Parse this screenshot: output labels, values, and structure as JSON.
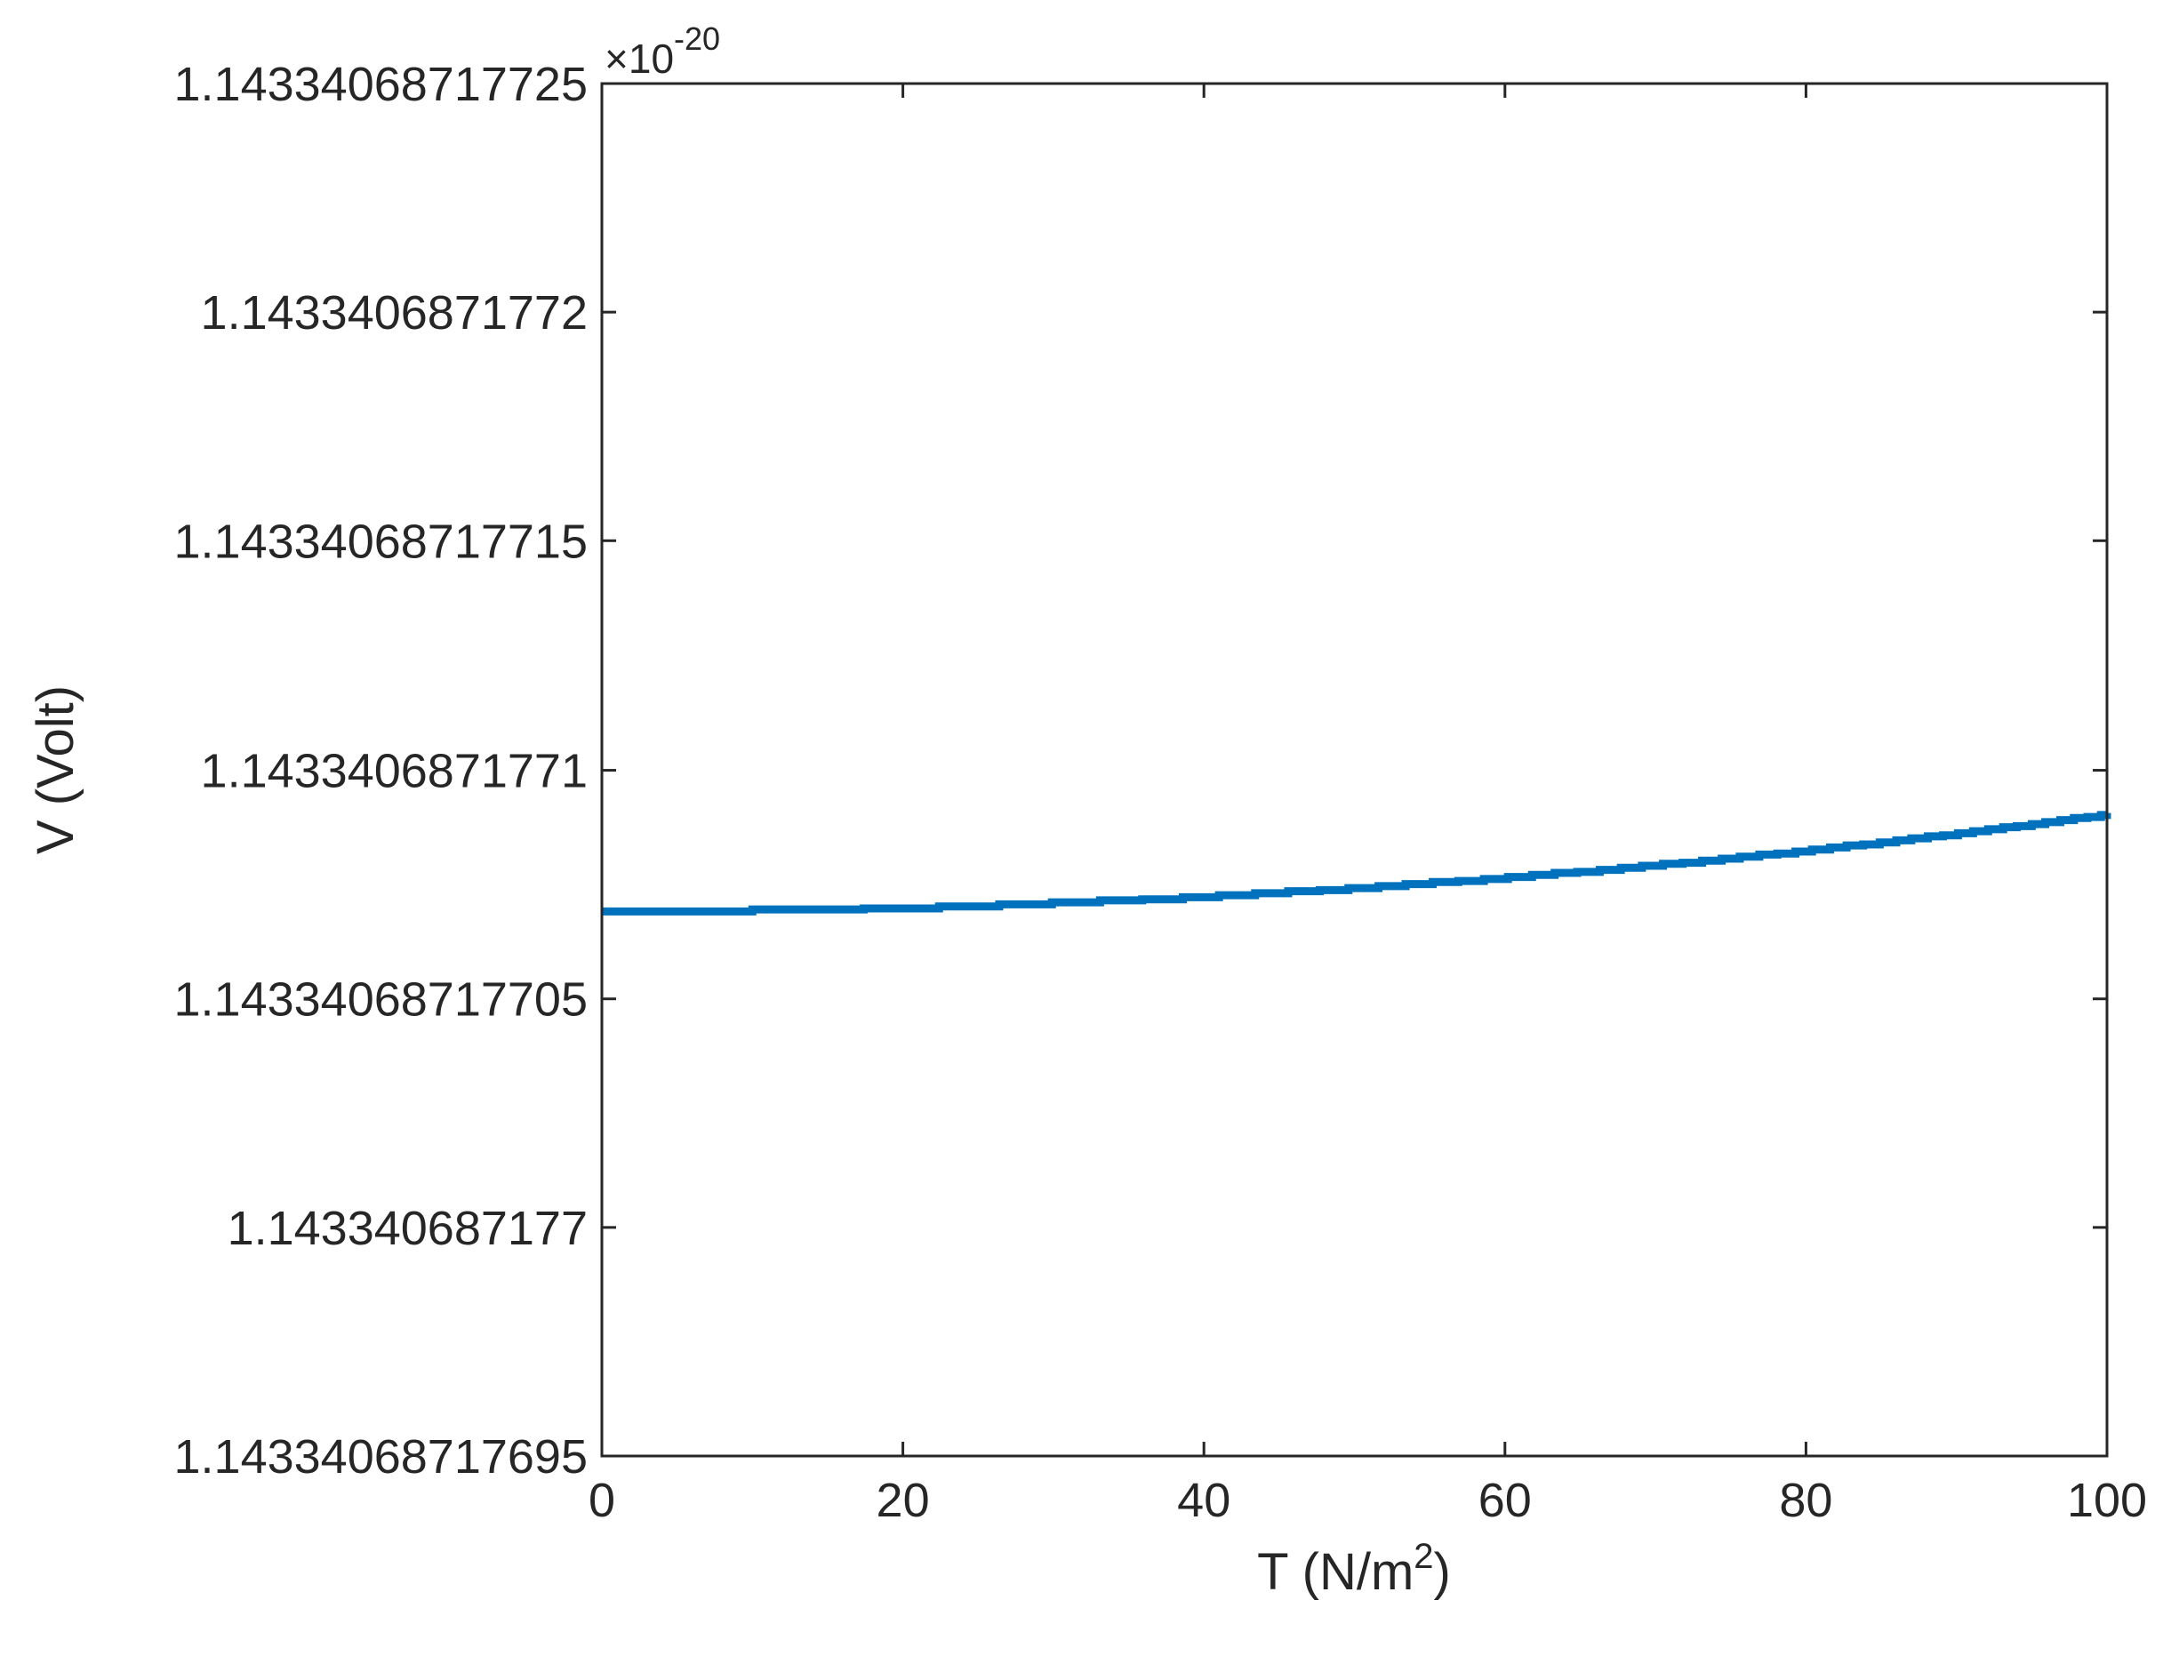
{
  "chart_data": {
    "type": "line",
    "xlabel": "T (N/m",
    "xlabel_superscript": "2",
    "xlabel_suffix": ")",
    "ylabel": "V (Volt)",
    "y_exponent_prefix": "×10",
    "y_exponent_power": "-20",
    "xlim": [
      0,
      100
    ],
    "ylim": [
      1.14334068717695,
      1.14334068717725
    ],
    "x_ticks": [
      0,
      20,
      40,
      60,
      80,
      100
    ],
    "x_tick_labels": [
      "0",
      "20",
      "40",
      "60",
      "80",
      "100"
    ],
    "y_ticks": [
      1.14334068717695,
      1.143340687177,
      1.14334068717705,
      1.1433406871771,
      1.14334068717715,
      1.1433406871772,
      1.14334068717725
    ],
    "y_tick_labels": [
      "1.14334068717695",
      "1.143340687177",
      "1.14334068717705",
      "1.1433406871771",
      "1.14334068717715",
      "1.1433406871772",
      "1.14334068717725"
    ],
    "grid": false,
    "series": [
      {
        "color": "#0072BD",
        "step": true,
        "x": [
          0,
          10,
          17.4,
          22.4,
          26.4,
          29.9,
          33.1,
          35.9,
          38.6,
          41.0,
          43.4,
          45.6,
          47.7,
          49.6,
          51.6,
          53.4,
          55.2,
          56.9,
          58.6,
          60.2,
          61.8,
          63.3,
          64.8,
          66.3,
          67.7,
          69.1,
          70.5,
          71.8,
          73.1,
          74.4,
          75.6,
          76.9,
          78.1,
          79.3,
          80.4,
          81.6,
          82.7,
          83.8,
          84.9,
          86.0,
          87.0,
          88.1,
          89.1,
          90.1,
          91.1,
          92.1,
          93.1,
          94.0,
          95.0,
          95.9,
          96.9,
          97.8,
          98.7,
          99.6,
          100
        ],
        "y": [
          1.143340687177069,
          1.1433406871770695,
          1.1433406871770697,
          1.1433406871770702,
          1.1433406871770706,
          1.143340687177071,
          1.1433406871770715,
          1.1433406871770717,
          1.1433406871770722,
          1.1433406871770726,
          1.143340687177073,
          1.1433406871770735,
          1.1433406871770737,
          1.1433406871770742,
          1.1433406871770746,
          1.143340687177075,
          1.1433406871770755,
          1.1433406871770757,
          1.1433406871770762,
          1.1433406871770766,
          1.143340687177077,
          1.1433406871770775,
          1.1433406871770777,
          1.1433406871770782,
          1.1433406871770786,
          1.143340687177079,
          1.1433406871770795,
          1.1433406871770797,
          1.1433406871770802,
          1.1433406871770806,
          1.143340687177081,
          1.1433406871770815,
          1.1433406871770817,
          1.1433406871770821,
          1.1433406871770826,
          1.143340687177083,
          1.1433406871770835,
          1.1433406871770837,
          1.1433406871770841,
          1.1433406871770846,
          1.143340687177085,
          1.1433406871770855,
          1.1433406871770857,
          1.1433406871770861,
          1.1433406871770866,
          1.143340687177087,
          1.1433406871770875,
          1.1433406871770877,
          1.1433406871770881,
          1.1433406871770886,
          1.143340687177089,
          1.1433406871770895,
          1.1433406871770897,
          1.1433406871770901,
          1.1433406871770906
        ]
      }
    ]
  }
}
